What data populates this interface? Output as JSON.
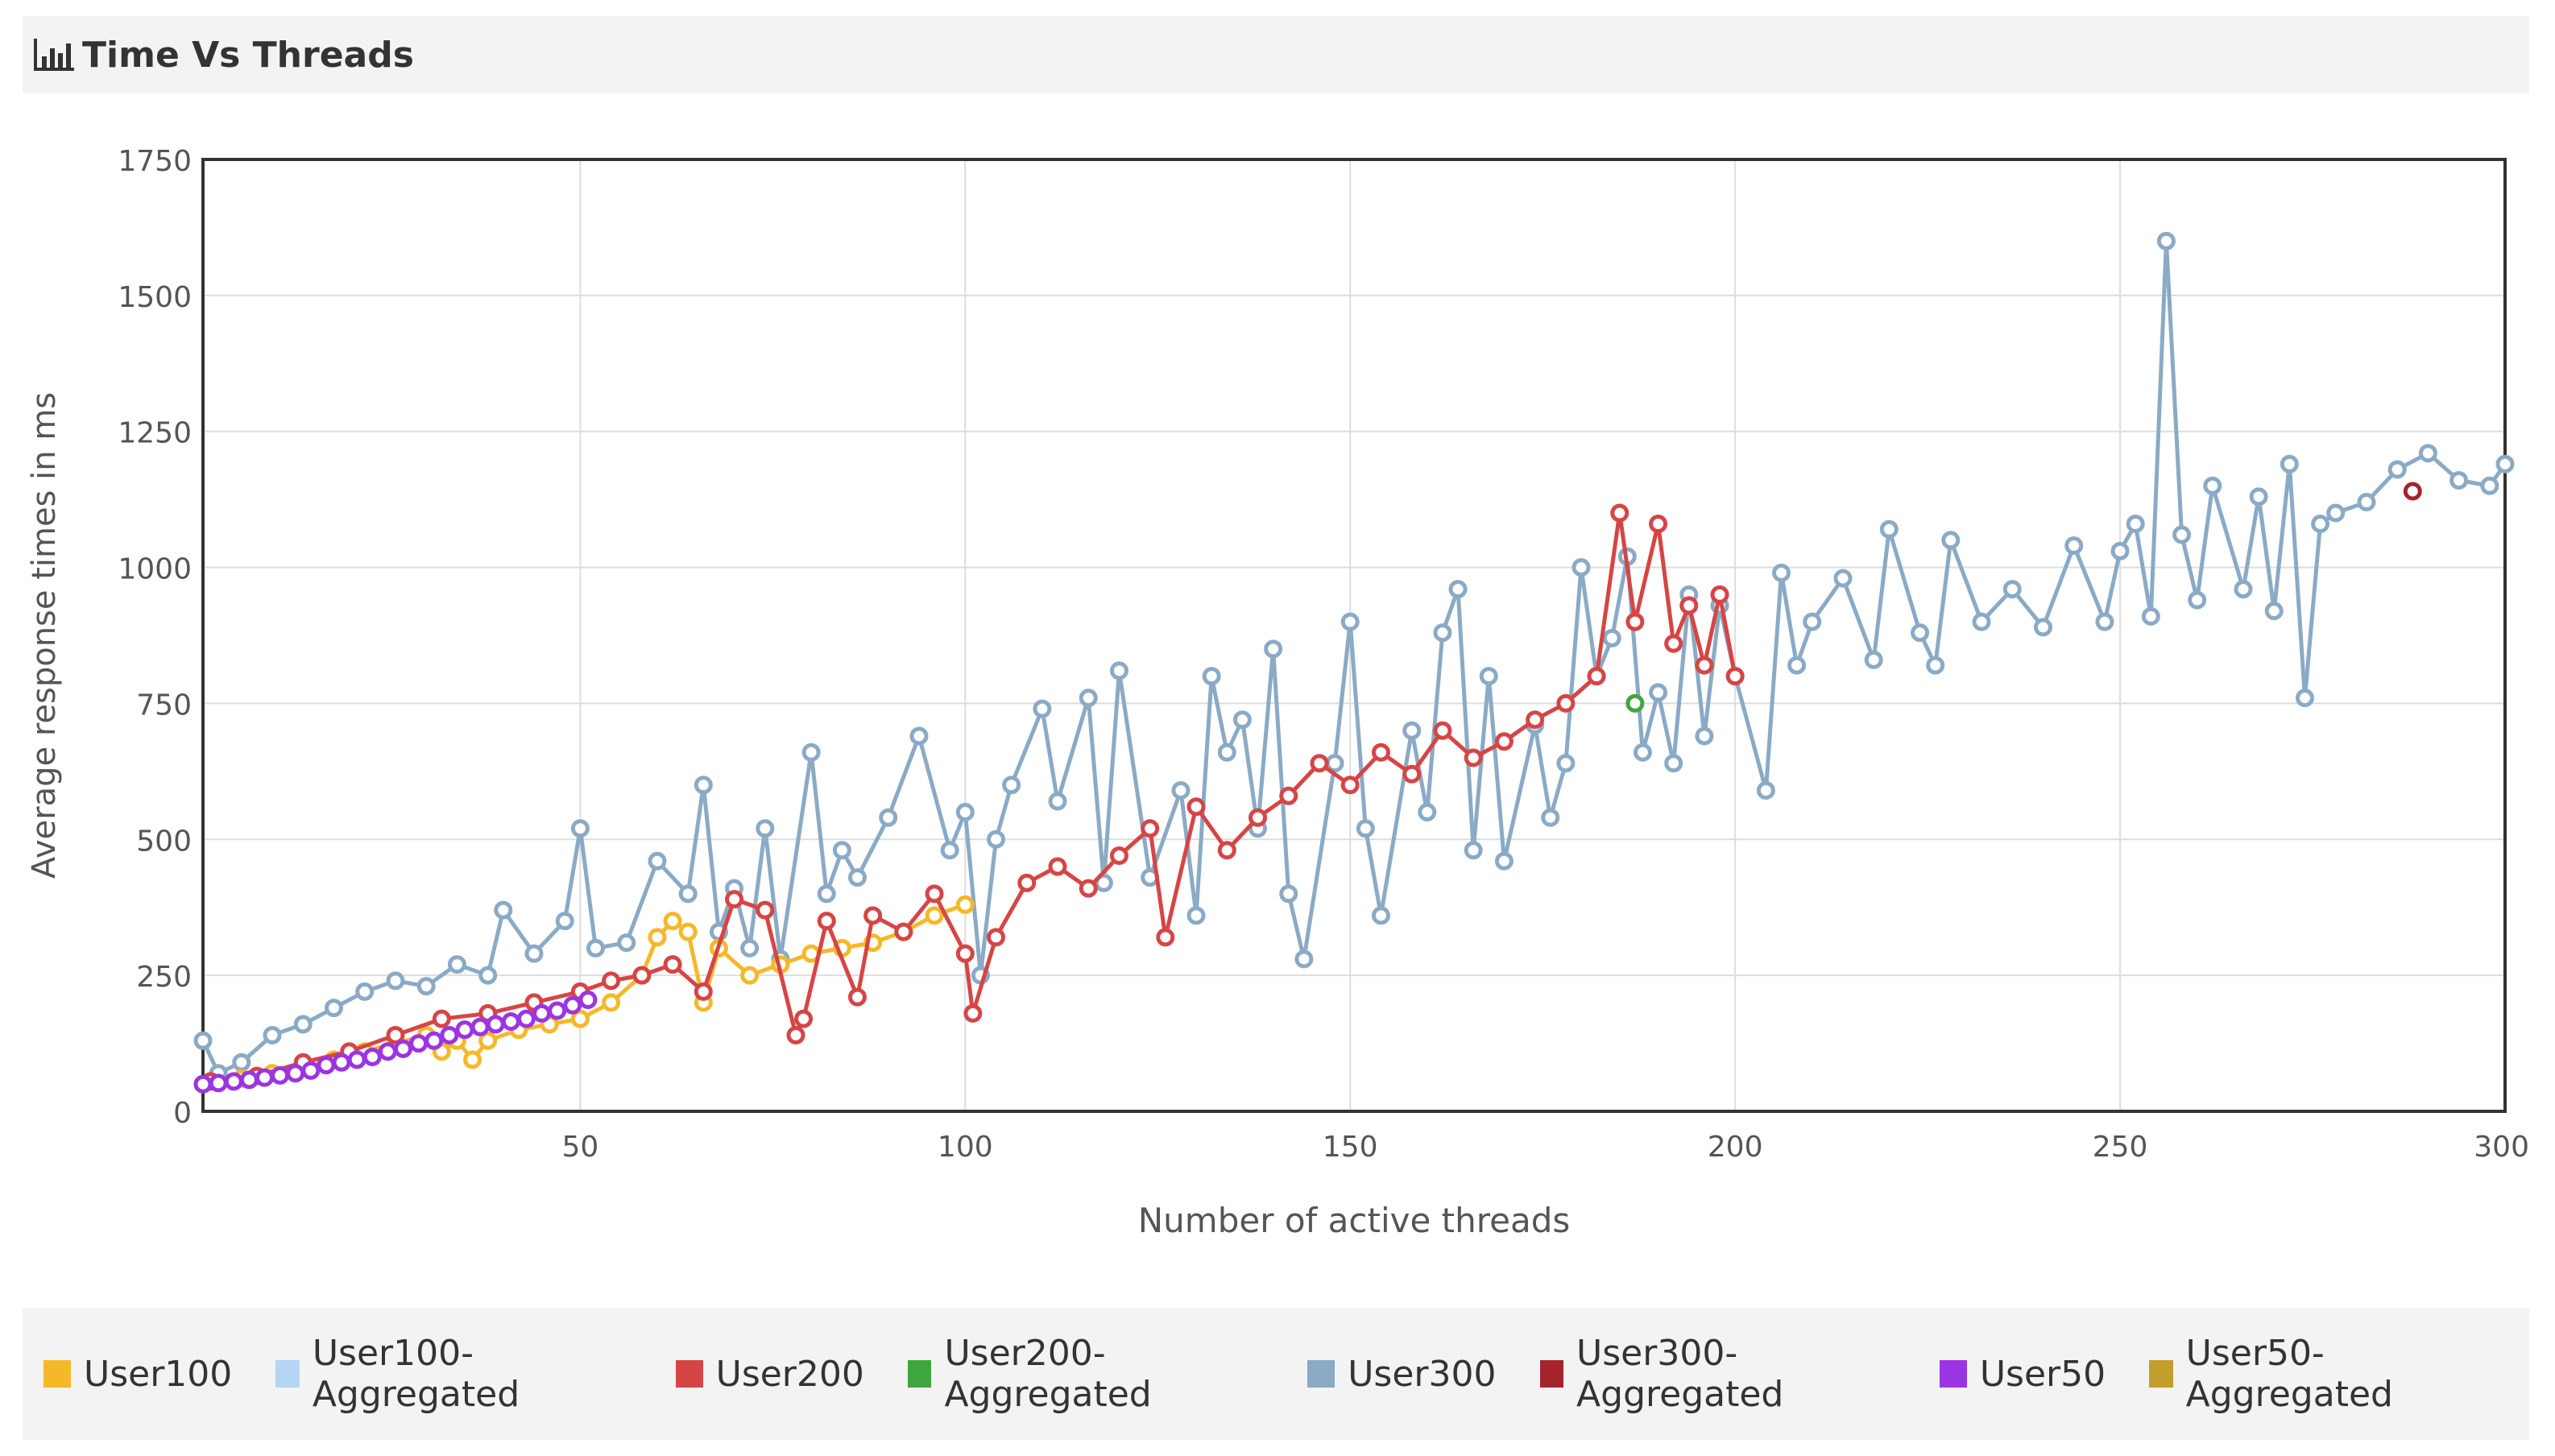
{
  "header": {
    "title": "Time Vs Threads",
    "icon": "bar-chart-icon"
  },
  "colors": {
    "User100": "#f5b829",
    "User100-Aggregated": "#b5d6f3",
    "User200": "#d64545",
    "User200-Aggregated": "#3fa63f",
    "User300": "#8aaac6",
    "User300-Aggregated": "#a5242c",
    "User50": "#9b35e3",
    "User50-Aggregated": "#c49e2a"
  },
  "chart_data": {
    "type": "line",
    "title": "Time Vs Threads",
    "xlabel": "Number of active threads",
    "ylabel": "Average response times in ms",
    "xlim": [
      1,
      300
    ],
    "ylim": [
      0,
      1750
    ],
    "xticks": [
      "50",
      "100",
      "150",
      "200",
      "250",
      "300"
    ],
    "yticks": [
      "0",
      "250",
      "500",
      "750",
      "1000",
      "1250",
      "1500",
      "1750"
    ],
    "grid": true,
    "legend_position": "bottom",
    "series": [
      {
        "name": "User100",
        "x": [
          2,
          6,
          10,
          14,
          18,
          22,
          26,
          30,
          32,
          34,
          36,
          38,
          42,
          46,
          50,
          54,
          58,
          60,
          62,
          64,
          66,
          68,
          72,
          76,
          80,
          84,
          88,
          92,
          96,
          100
        ],
        "y": [
          55,
          60,
          70,
          80,
          95,
          110,
          125,
          140,
          110,
          130,
          95,
          130,
          150,
          160,
          170,
          200,
          250,
          320,
          350,
          330,
          200,
          300,
          250,
          270,
          290,
          300,
          310,
          330,
          360,
          380
        ]
      },
      {
        "name": "User100-Aggregated",
        "x": [],
        "y": []
      },
      {
        "name": "User200",
        "x": [
          2,
          8,
          14,
          20,
          26,
          32,
          38,
          44,
          50,
          54,
          58,
          62,
          66,
          70,
          74,
          78,
          79,
          82,
          86,
          88,
          92,
          96,
          100,
          101,
          104,
          108,
          112,
          116,
          120,
          124,
          126,
          130,
          134,
          138,
          142,
          146,
          150,
          154,
          158,
          162,
          166,
          170,
          174,
          178,
          182,
          185,
          187,
          190,
          192,
          194,
          196,
          198,
          200
        ],
        "y": [
          55,
          65,
          90,
          110,
          140,
          170,
          180,
          200,
          220,
          240,
          250,
          270,
          220,
          390,
          370,
          140,
          170,
          350,
          210,
          360,
          330,
          400,
          290,
          180,
          320,
          420,
          450,
          410,
          470,
          520,
          320,
          560,
          480,
          540,
          580,
          640,
          600,
          660,
          620,
          700,
          650,
          680,
          720,
          750,
          800,
          1100,
          900,
          1080,
          860,
          930,
          820,
          950,
          800
        ]
      },
      {
        "name": "User200-Aggregated",
        "x": [
          187
        ],
        "y": [
          750
        ]
      },
      {
        "name": "User300",
        "x": [
          1,
          3,
          6,
          10,
          14,
          18,
          22,
          26,
          30,
          34,
          38,
          40,
          44,
          48,
          50,
          52,
          56,
          60,
          64,
          66,
          68,
          70,
          72,
          74,
          76,
          80,
          82,
          84,
          86,
          90,
          94,
          98,
          100,
          102,
          104,
          106,
          110,
          112,
          116,
          118,
          120,
          124,
          128,
          130,
          132,
          134,
          136,
          138,
          140,
          142,
          144,
          148,
          150,
          152,
          154,
          158,
          160,
          162,
          164,
          166,
          168,
          170,
          174,
          176,
          178,
          180,
          182,
          184,
          186,
          188,
          190,
          192,
          194,
          196,
          198,
          200,
          204,
          206,
          208,
          210,
          214,
          218,
          220,
          224,
          226,
          228,
          232,
          236,
          240,
          244,
          248,
          250,
          252,
          254,
          256,
          258,
          260,
          262,
          266,
          268,
          270,
          272,
          274,
          276,
          278,
          282,
          286,
          290,
          294,
          298,
          300
        ],
        "y": [
          130,
          70,
          90,
          140,
          160,
          190,
          220,
          240,
          230,
          270,
          250,
          370,
          290,
          350,
          520,
          300,
          310,
          460,
          400,
          600,
          330,
          410,
          300,
          520,
          280,
          660,
          400,
          480,
          430,
          540,
          690,
          480,
          550,
          250,
          500,
          600,
          740,
          570,
          760,
          420,
          810,
          430,
          590,
          360,
          800,
          660,
          720,
          520,
          850,
          400,
          280,
          640,
          900,
          520,
          360,
          700,
          550,
          880,
          960,
          480,
          800,
          460,
          710,
          540,
          640,
          1000,
          800,
          870,
          1020,
          660,
          770,
          640,
          950,
          690,
          930,
          800,
          590,
          990,
          820,
          900,
          980,
          830,
          1070,
          880,
          820,
          1050,
          900,
          960,
          890,
          1040,
          900,
          1030,
          1080,
          910,
          1600,
          1060,
          940,
          1150,
          960,
          1130,
          920,
          1190,
          760,
          1080,
          1100,
          1120,
          1180,
          1210,
          1160,
          1150,
          1190
        ]
      },
      {
        "name": "User300-Aggregated",
        "x": [
          288
        ],
        "y": [
          1140
        ]
      },
      {
        "name": "User50",
        "x": [
          1,
          3,
          5,
          7,
          9,
          11,
          13,
          15,
          17,
          19,
          21,
          23,
          25,
          27,
          29,
          31,
          33,
          35,
          37,
          39,
          41,
          43,
          45,
          47,
          49,
          51
        ],
        "y": [
          50,
          52,
          55,
          58,
          62,
          66,
          70,
          75,
          85,
          90,
          95,
          100,
          110,
          115,
          125,
          130,
          140,
          150,
          155,
          160,
          165,
          170,
          180,
          185,
          195,
          205
        ]
      },
      {
        "name": "User50-Aggregated",
        "x": [],
        "y": []
      }
    ]
  }
}
